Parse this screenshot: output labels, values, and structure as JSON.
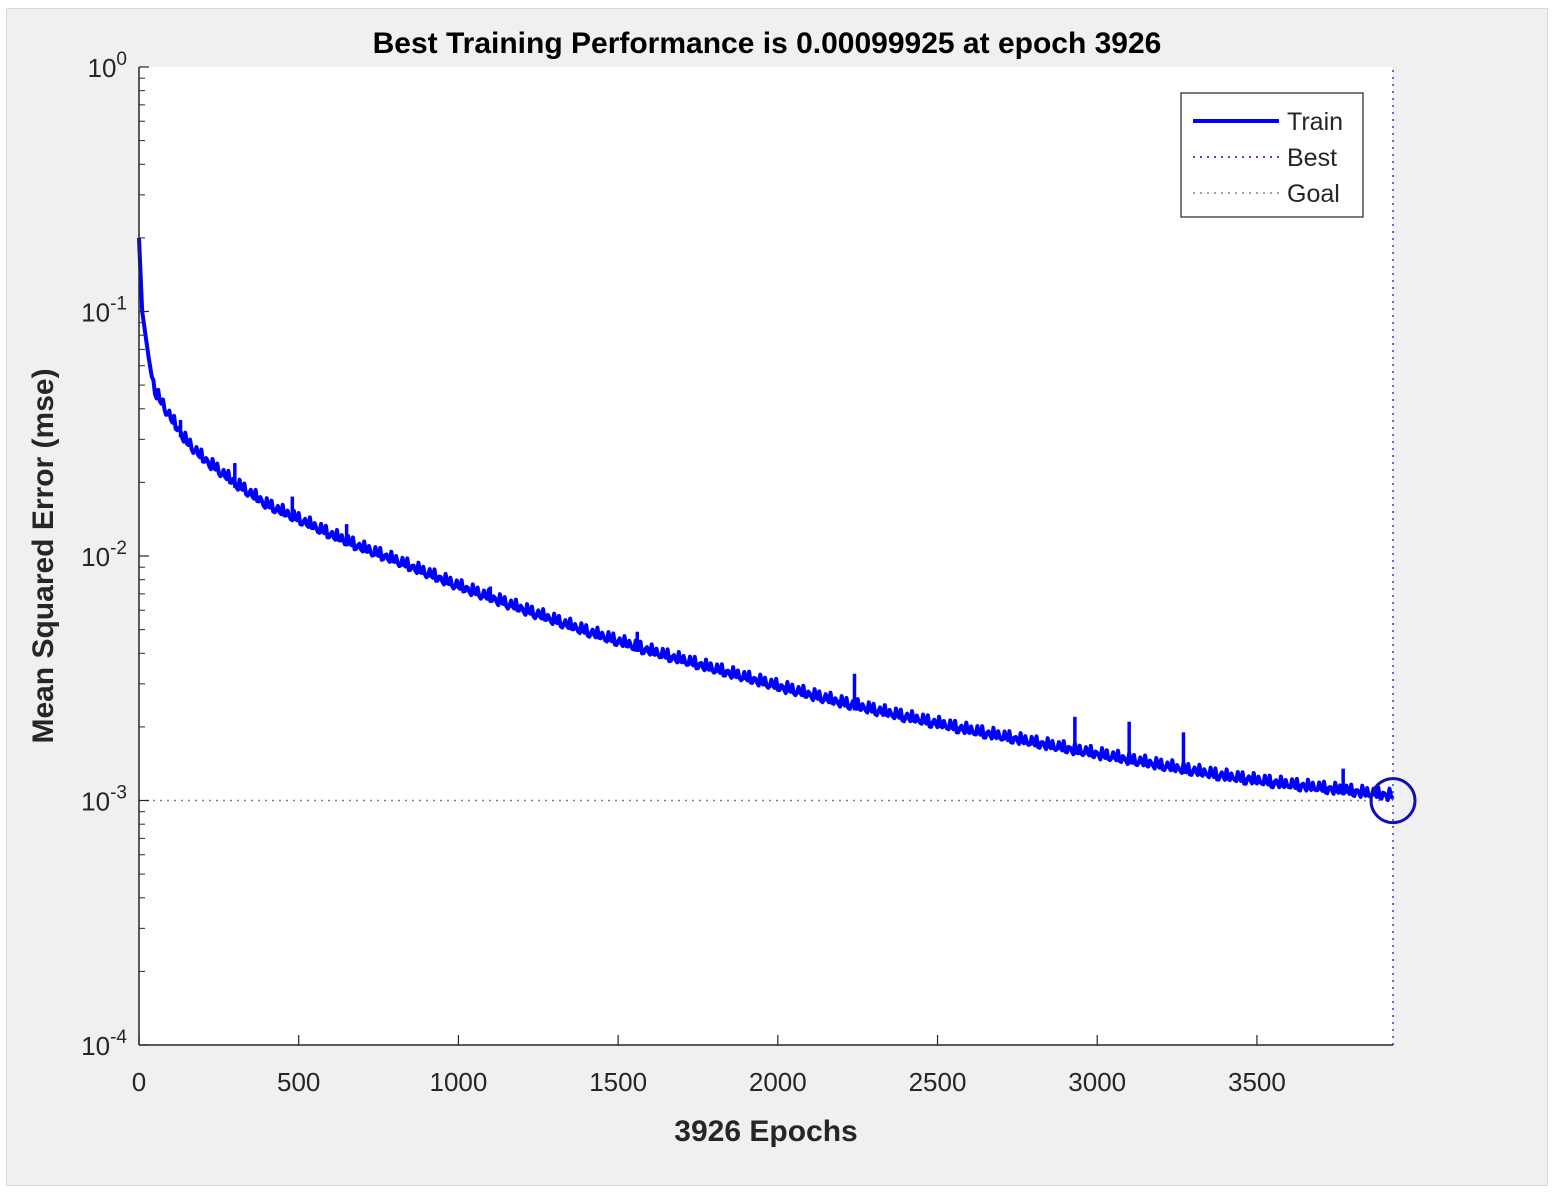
{
  "chart_data": {
    "type": "line",
    "title": "Best Training Performance is 0.00099925 at epoch 3926",
    "xlabel": "3926 Epochs",
    "ylabel": "Mean Squared Error  (mse)",
    "xlim": [
      0,
      3926
    ],
    "ylim": [
      0.0001,
      1
    ],
    "yscale": "log",
    "x_ticks": [
      0,
      500,
      1000,
      1500,
      2000,
      2500,
      3000,
      3500
    ],
    "y_ticks": [
      {
        "value": 1,
        "base": "10",
        "exp": "0"
      },
      {
        "value": 0.1,
        "base": "10",
        "exp": "-1"
      },
      {
        "value": 0.01,
        "base": "10",
        "exp": "-2"
      },
      {
        "value": 0.001,
        "base": "10",
        "exp": "-3"
      },
      {
        "value": 0.0001,
        "base": "10",
        "exp": "-4"
      }
    ],
    "grid": false,
    "legend_position": "top-right",
    "series": [
      {
        "name": "Train",
        "color": "#0000ff",
        "style": "solid",
        "x": [
          0,
          10,
          30,
          50,
          100,
          150,
          200,
          300,
          400,
          500,
          600,
          700,
          800,
          1000,
          1200,
          1400,
          1600,
          1800,
          2000,
          2200,
          2400,
          2600,
          2800,
          3000,
          3200,
          3400,
          3600,
          3800,
          3926
        ],
        "y": [
          0.2,
          0.1,
          0.065,
          0.045,
          0.035,
          0.028,
          0.024,
          0.019,
          0.0155,
          0.0135,
          0.0117,
          0.0103,
          0.0092,
          0.0072,
          0.0058,
          0.0047,
          0.0039,
          0.0033,
          0.0028,
          0.0024,
          0.0021,
          0.00185,
          0.00165,
          0.00148,
          0.00133,
          0.0012,
          0.00111,
          0.00104,
          0.00099925
        ],
        "spikes": [
          {
            "x": 130,
            "y": 0.036
          },
          {
            "x": 300,
            "y": 0.024
          },
          {
            "x": 480,
            "y": 0.0175
          },
          {
            "x": 650,
            "y": 0.0135
          },
          {
            "x": 1100,
            "y": 0.0075
          },
          {
            "x": 1560,
            "y": 0.0049
          },
          {
            "x": 2240,
            "y": 0.0033
          },
          {
            "x": 2930,
            "y": 0.0022
          },
          {
            "x": 3100,
            "y": 0.0021
          },
          {
            "x": 3270,
            "y": 0.0019
          },
          {
            "x": 3770,
            "y": 0.00135
          }
        ]
      },
      {
        "name": "Best",
        "color": "#0000ff",
        "style": "dotted",
        "x": [
          3926,
          3926
        ],
        "y": [
          0.0001,
          1
        ]
      },
      {
        "name": "Goal",
        "color": "#808080",
        "style": "dotted",
        "x": [
          0,
          3926
        ],
        "y": [
          0.001,
          0.001
        ]
      }
    ],
    "best_marker": {
      "x": 3926,
      "y": 0.00099925
    }
  }
}
